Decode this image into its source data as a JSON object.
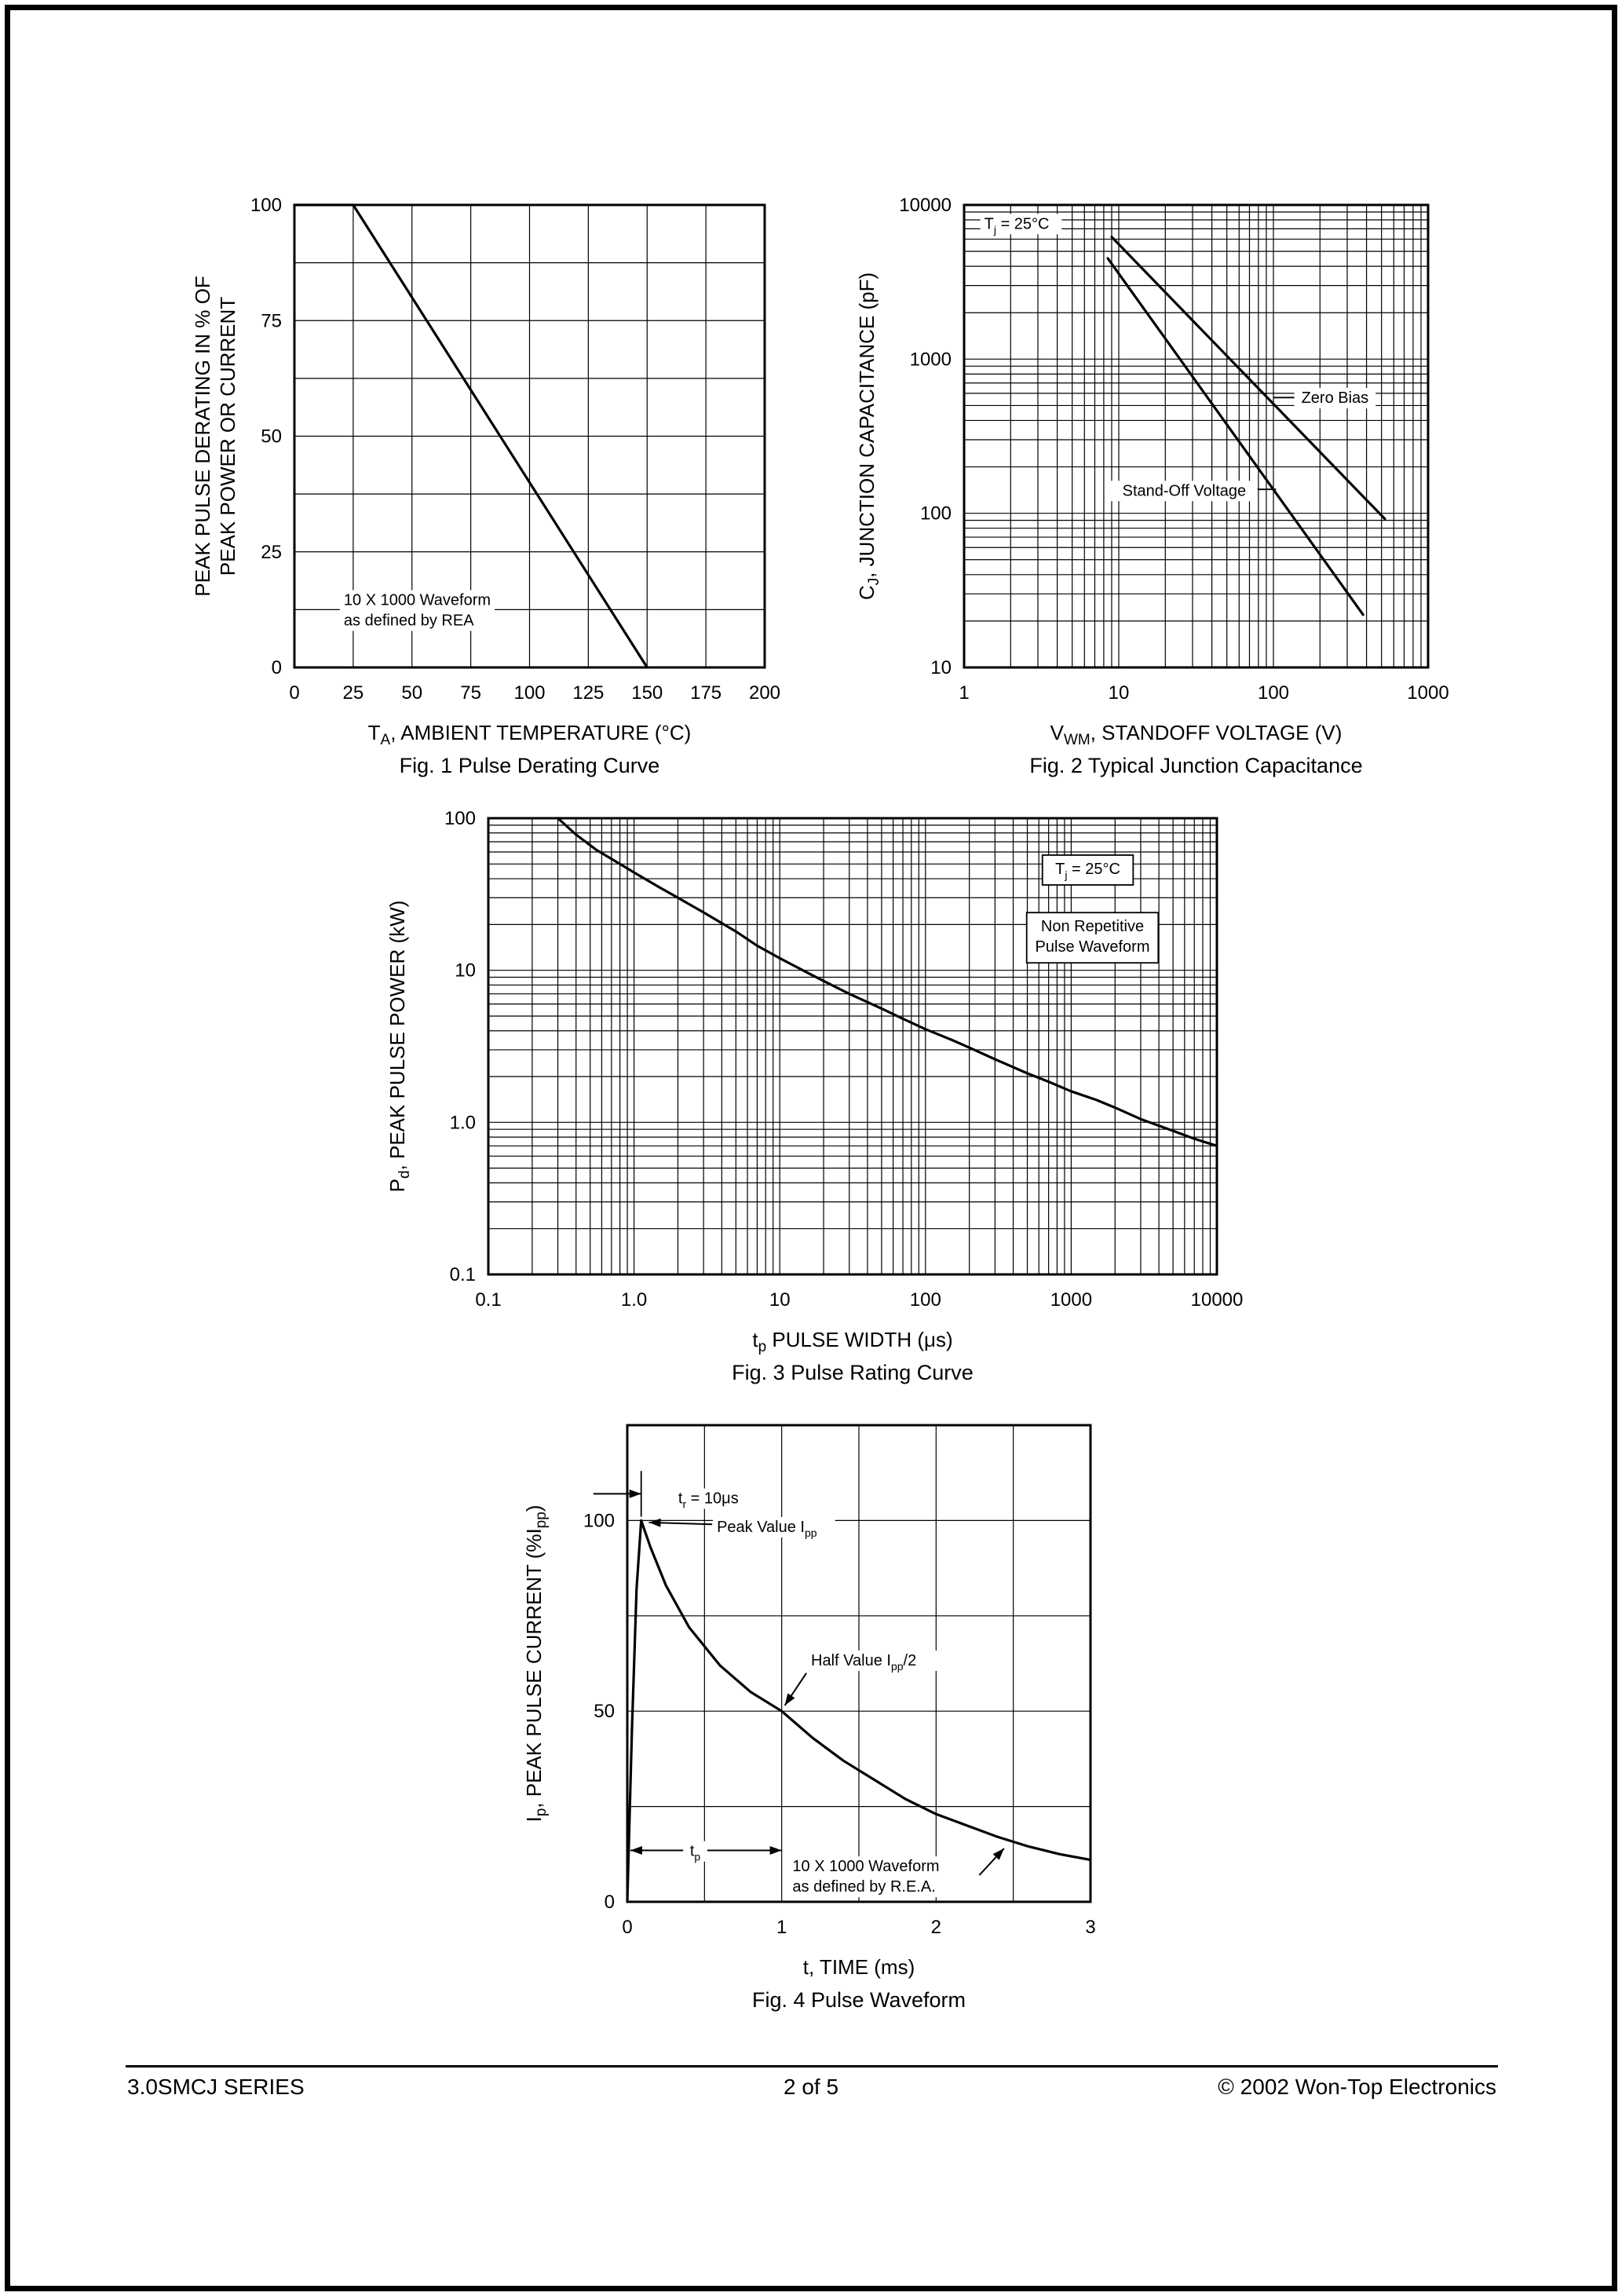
{
  "footer": {
    "left": "3.0SMCJ SERIES",
    "center": "2  of  5",
    "right": "© 2002 Won-Top Electronics"
  },
  "chart_data": [
    {
      "id": "fig1",
      "name": "pulse-derating-curve",
      "type": "line",
      "title": "Fig. 1  Pulse Derating Curve",
      "xlabel": "T~A~, AMBIENT TEMPERATURE (°C)",
      "ylabel": "PEAK PULSE DERATING IN % OF\nPEAK POWER OR CURRENT",
      "xscale": "linear",
      "yscale": "linear",
      "xlim": [
        0,
        200
      ],
      "ylim": [
        0,
        100
      ],
      "xgrid_step": 25,
      "ygrid_step": 12.5,
      "xticks": [
        [
          0,
          "0"
        ],
        [
          25,
          "25"
        ],
        [
          50,
          "50"
        ],
        [
          75,
          "75"
        ],
        [
          100,
          "100"
        ],
        [
          125,
          "125"
        ],
        [
          150,
          "150"
        ],
        [
          175,
          "175"
        ],
        [
          200,
          "200"
        ]
      ],
      "yticks": [
        [
          0,
          "0"
        ],
        [
          25,
          "25"
        ],
        [
          50,
          "50"
        ],
        [
          75,
          "75"
        ],
        [
          100,
          "100"
        ]
      ],
      "series": [
        {
          "name": "derating line",
          "points": [
            [
              0,
              100
            ],
            [
              25,
              100
            ],
            [
              150,
              0
            ]
          ]
        }
      ],
      "annotations": [
        {
          "type": "text",
          "text": "10 X 1000 Waveform\nas defined by REA",
          "x": 21,
          "y": 13.5,
          "align": "left",
          "bg": true
        }
      ]
    },
    {
      "id": "fig2",
      "name": "typical-junction-capacitance",
      "type": "line",
      "title": "Fig. 2  Typical Junction Capacitance",
      "xlabel": "V~WM~, STANDOFF VOLTAGE (V)",
      "ylabel": "C~J~, JUNCTION CAPACITANCE (pF)",
      "xscale": "log",
      "yscale": "log",
      "xlim": [
        1,
        1000
      ],
      "ylim": [
        10,
        10000
      ],
      "xticks": [
        [
          1,
          "1"
        ],
        [
          10,
          "10"
        ],
        [
          100,
          "100"
        ],
        [
          1000,
          "1000"
        ]
      ],
      "yticks": [
        [
          10,
          "10"
        ],
        [
          100,
          "100"
        ],
        [
          1000,
          "1000"
        ],
        [
          10000,
          "10000"
        ]
      ],
      "series": [
        {
          "name": "Zero Bias",
          "points": [
            [
              9,
              6200
            ],
            [
              525,
              92
            ]
          ]
        },
        {
          "name": "Stand-Off Voltage",
          "points": [
            [
              8.5,
              4500
            ],
            [
              380,
              22
            ]
          ]
        }
      ],
      "annotations": [
        {
          "type": "text",
          "text": "T~j~ = 25°C",
          "x": 1.35,
          "y": 7000,
          "align": "left",
          "bg": true
        },
        {
          "type": "line",
          "x1": 100,
          "y1": 563,
          "x2": 139,
          "y2": 563
        },
        {
          "type": "text",
          "text": "Zero Bias",
          "x": 250,
          "y": 520,
          "align": "middle",
          "bg": true
        },
        {
          "type": "line",
          "x1": 75,
          "y1": 143,
          "x2": 104,
          "y2": 143
        },
        {
          "type": "text",
          "text": "Stand-Off Voltage",
          "x": 26.5,
          "y": 130,
          "align": "middle",
          "bg": true
        }
      ]
    },
    {
      "id": "fig3",
      "name": "pulse-rating-curve",
      "type": "line",
      "title": "Fig. 3 Pulse Rating Curve",
      "xlabel": "t~p~ PULSE WIDTH (μs)",
      "ylabel": "P~d~, PEAK PULSE POWER (kW)",
      "xscale": "log",
      "yscale": "log",
      "xlim": [
        0.1,
        10000
      ],
      "ylim": [
        0.1,
        100
      ],
      "xticks": [
        [
          0.1,
          "0.1"
        ],
        [
          1,
          "1.0"
        ],
        [
          10,
          "10"
        ],
        [
          100,
          "100"
        ],
        [
          1000,
          "1000"
        ],
        [
          10000,
          "10000"
        ]
      ],
      "yticks": [
        [
          0.1,
          "0.1"
        ],
        [
          1,
          "1.0"
        ],
        [
          10,
          "10"
        ],
        [
          100,
          "100"
        ]
      ],
      "series": [
        {
          "name": "peak pulse power",
          "points": [
            [
              0.3,
              100
            ],
            [
              0.4,
              78
            ],
            [
              0.55,
              62
            ],
            [
              0.8,
              50
            ],
            [
              1,
              44
            ],
            [
              1.5,
              35
            ],
            [
              2,
              30
            ],
            [
              3,
              24
            ],
            [
              5,
              18
            ],
            [
              7,
              14.5
            ],
            [
              10,
              12
            ],
            [
              15,
              9.8
            ],
            [
              20,
              8.5
            ],
            [
              30,
              7
            ],
            [
              50,
              5.6
            ],
            [
              70,
              4.8
            ],
            [
              100,
              4.1
            ],
            [
              150,
              3.5
            ],
            [
              200,
              3.1
            ],
            [
              300,
              2.6
            ],
            [
              500,
              2.1
            ],
            [
              700,
              1.85
            ],
            [
              1000,
              1.6
            ],
            [
              1500,
              1.4
            ],
            [
              2000,
              1.25
            ],
            [
              3000,
              1.05
            ],
            [
              5000,
              0.88
            ],
            [
              7000,
              0.78
            ],
            [
              10000,
              0.7
            ]
          ]
        }
      ],
      "annotations": [
        {
          "type": "text",
          "text": "T~j~ = 25°C",
          "x": 1300,
          "y": 43,
          "align": "middle",
          "bg": true,
          "box": true
        },
        {
          "type": "text",
          "text": "Non Repetitive\nPulse Waveform",
          "x": 1400,
          "y": 18,
          "align": "middle",
          "bg": true,
          "box": true
        }
      ]
    },
    {
      "id": "fig4",
      "name": "pulse-waveform",
      "type": "line",
      "title": "Fig. 4  Pulse Waveform",
      "xlabel": "t, TIME (ms)",
      "ylabel": "I~p~, PEAK PULSE CURRENT (%I~pp~)",
      "xscale": "linear",
      "yscale": "linear",
      "xlim": [
        0,
        3
      ],
      "ylim": [
        0,
        125
      ],
      "xgrid_step": 0.5,
      "ygrid_step": 25,
      "xticks": [
        [
          0,
          "0"
        ],
        [
          1,
          "1"
        ],
        [
          2,
          "2"
        ],
        [
          3,
          "3"
        ]
      ],
      "yticks": [
        [
          0,
          "0"
        ],
        [
          50,
          "50"
        ],
        [
          100,
          "100"
        ]
      ],
      "series": [
        {
          "name": "pulse current",
          "points": [
            [
              0,
              0
            ],
            [
              0.03,
              45
            ],
            [
              0.06,
              82
            ],
            [
              0.09,
              100
            ],
            [
              0.15,
              93
            ],
            [
              0.25,
              83
            ],
            [
              0.4,
              72
            ],
            [
              0.6,
              62
            ],
            [
              0.8,
              55
            ],
            [
              1.0,
              50
            ],
            [
              1.2,
              43
            ],
            [
              1.4,
              37
            ],
            [
              1.6,
              32
            ],
            [
              1.8,
              27
            ],
            [
              2.0,
              23
            ],
            [
              2.2,
              20
            ],
            [
              2.4,
              17
            ],
            [
              2.6,
              14.5
            ],
            [
              2.8,
              12.5
            ],
            [
              3.0,
              11
            ]
          ]
        }
      ],
      "annotations": [
        {
          "type": "arrow",
          "x1": -0.22,
          "y1": 107,
          "x2": 0.09,
          "y2": 107
        },
        {
          "type": "line",
          "x1": 0.09,
          "y1": 101,
          "x2": 0.09,
          "y2": 113
        },
        {
          "type": "text",
          "text": "t~r~ = 10μs",
          "x": 0.33,
          "y": 104.5,
          "align": "left",
          "bg": true
        },
        {
          "type": "arrow",
          "x1": 0.55,
          "y1": 99,
          "x2": 0.14,
          "y2": 99.5
        },
        {
          "type": "text",
          "text": "Peak Value I~pp~",
          "x": 0.58,
          "y": 97,
          "align": "left",
          "bg": true
        },
        {
          "type": "arrow",
          "x1": 1.16,
          "y1": 60,
          "x2": 1.02,
          "y2": 51.5
        },
        {
          "type": "text",
          "text": "Half Value I~pp~/2",
          "x": 1.19,
          "y": 62,
          "align": "left",
          "bg": true
        },
        {
          "type": "dblarrow",
          "x1": 0.02,
          "y1": 13.5,
          "x2": 1.0,
          "y2": 13.5
        },
        {
          "type": "text",
          "text": "t~p~",
          "x": 0.44,
          "y": 12,
          "align": "middle",
          "bg": true
        },
        {
          "type": "text",
          "text": "10 X 1000 Waveform\nas defined by R.E.A.",
          "x": 1.07,
          "y": 8,
          "align": "left",
          "bg": true
        },
        {
          "type": "arrow",
          "x1": 2.28,
          "y1": 7,
          "x2": 2.44,
          "y2": 14
        }
      ]
    }
  ]
}
